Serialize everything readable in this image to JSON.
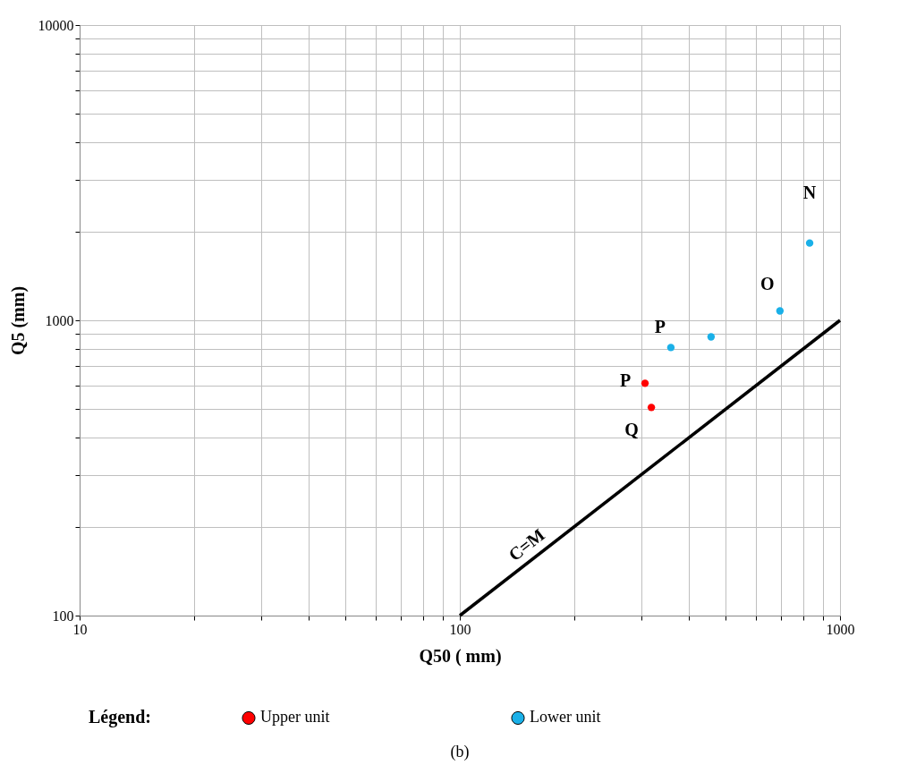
{
  "chart_data": {
    "type": "scatter",
    "xlabel": "Q50 ( mm)",
    "ylabel": "Q5 (mm)",
    "legend_title": "Légend:",
    "log": "xy",
    "grid": true,
    "legend": "bottom",
    "marker": "circle",
    "xlim": [
      10,
      1000
    ],
    "ylim": [
      100,
      10000
    ],
    "xticks": [
      10,
      {
        "value": 20,
        "label": null
      },
      {
        "value": 30,
        "label": null
      },
      {
        "value": 40,
        "label": null
      },
      {
        "value": 50,
        "label": null
      },
      {
        "value": 60,
        "label": null
      },
      {
        "value": 70,
        "label": null
      },
      {
        "value": 80,
        "label": null
      },
      {
        "value": 90,
        "label": null
      },
      100,
      {
        "value": 200,
        "label": null
      },
      {
        "value": 300,
        "label": null
      },
      {
        "value": 400,
        "label": null
      },
      {
        "value": 500,
        "label": null
      },
      {
        "value": 600,
        "label": null
      },
      {
        "value": 700,
        "label": null
      },
      {
        "value": 800,
        "label": null
      },
      {
        "value": 900,
        "label": null
      },
      1000
    ],
    "yticks": [
      100,
      {
        "value": 200,
        "label": null
      },
      {
        "value": 300,
        "label": null
      },
      {
        "value": 400,
        "label": null
      },
      {
        "value": 500,
        "label": null
      },
      {
        "value": 600,
        "label": null
      },
      {
        "value": 700,
        "label": null
      },
      {
        "value": 800,
        "label": null
      },
      {
        "value": 900,
        "label": null
      },
      1000,
      {
        "value": 2000,
        "label": null
      },
      {
        "value": 3000,
        "label": null
      },
      {
        "value": 4000,
        "label": null
      },
      {
        "value": 5000,
        "label": null
      },
      {
        "value": 6000,
        "label": null
      },
      {
        "value": 7000,
        "label": null
      },
      {
        "value": 8000,
        "label": null
      },
      {
        "value": 9000,
        "label": null
      },
      10000
    ],
    "series": [
      {
        "name": "Upper unit",
        "color": "#ff0000",
        "x": [
          307,
          319
        ],
        "values": [
          612,
          507
        ]
      },
      {
        "name": "Lower unit",
        "color": "#1ab0e8",
        "x": [
          359,
          458,
          695,
          832
        ],
        "values": [
          809,
          879,
          1076,
          1827
        ]
      },
      {
        "name": "C=M",
        "type": "line",
        "color": "#000000",
        "marker": "none",
        "x": [
          100,
          1000
        ],
        "values": [
          100,
          1000
        ]
      }
    ],
    "annotations": [
      {
        "text": "N",
        "x": 832,
        "y": 1827
      },
      {
        "text": "O",
        "x": 695,
        "y": 1076
      },
      {
        "text": "P",
        "x": 359,
        "y": 809
      },
      {
        "text": "P",
        "x": 307,
        "y": 612
      },
      {
        "text": "Q",
        "x": 319,
        "y": 507
      },
      "(b)"
    ]
  }
}
